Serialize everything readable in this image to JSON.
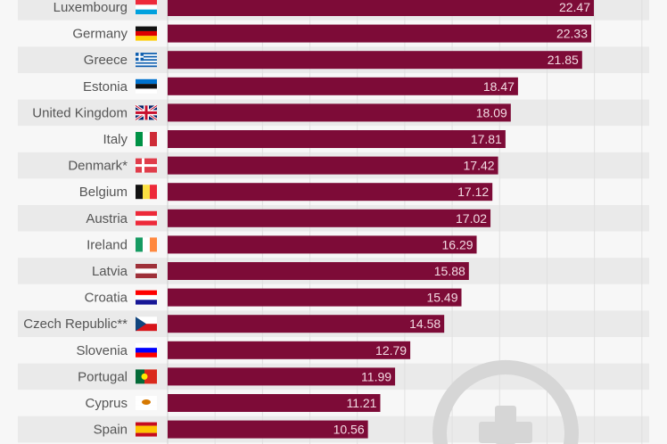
{
  "chart_data": {
    "type": "bar",
    "orientation": "horizontal",
    "categories": [
      "Luxembourg",
      "Germany",
      "Greece",
      "Estonia",
      "United Kingdom",
      "Italy",
      "Denmark*",
      "Belgium",
      "Austria",
      "Ireland",
      "Latvia",
      "Croatia",
      "Czech Republic**",
      "Slovenia",
      "Portugal",
      "Cyprus",
      "Spain"
    ],
    "values": [
      22.47,
      22.33,
      21.85,
      18.47,
      18.09,
      17.81,
      17.42,
      17.12,
      17.02,
      16.29,
      15.88,
      15.49,
      14.58,
      12.79,
      11.99,
      11.21,
      10.56
    ],
    "flags": [
      "luxembourg-flag",
      "germany-flag",
      "greece-flag",
      "estonia-flag",
      "uk-flag",
      "italy-flag",
      "denmark-flag",
      "belgium-flag",
      "austria-flag",
      "ireland-flag",
      "latvia-flag",
      "croatia-flag",
      "czech-flag",
      "slovenia-flag",
      "portugal-flag",
      "cyprus-flag",
      "spain-flag"
    ],
    "bar_color": "#7d0b37",
    "xlim": [
      0,
      25
    ],
    "grid": true
  }
}
